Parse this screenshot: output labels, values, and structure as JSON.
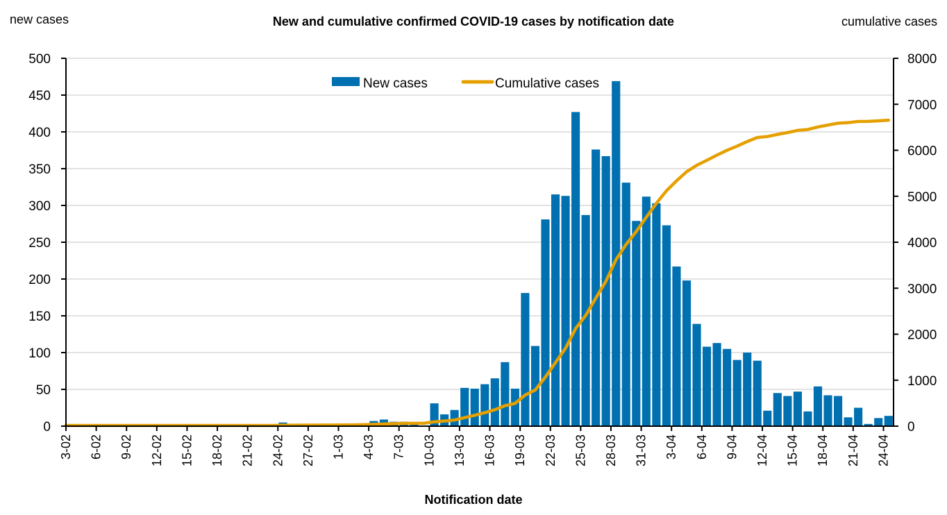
{
  "chart_data": {
    "type": "bar+line",
    "title": "New and cumulative confirmed COVID-19 cases by notification date",
    "xlabel": "Notification date",
    "ylabel_left": "new cases",
    "ylabel_right": "cumulative cases",
    "ylim_left": [
      0,
      500
    ],
    "ylim_right": [
      0,
      8000
    ],
    "yticks_left": [
      0,
      50,
      100,
      150,
      200,
      250,
      300,
      350,
      400,
      450,
      500
    ],
    "yticks_right": [
      0,
      1000,
      2000,
      3000,
      4000,
      5000,
      6000,
      7000,
      8000
    ],
    "grid": true,
    "legend": {
      "placement": "top-center",
      "entries": [
        "New cases",
        "Cumulative cases"
      ]
    },
    "colors": {
      "bars": "#0070B0",
      "line": "#E5A000",
      "grid": "#D9D9D9"
    },
    "x_tick_labels": [
      "3-02",
      "6-02",
      "9-02",
      "12-02",
      "15-02",
      "18-02",
      "21-02",
      "24-02",
      "27-02",
      "1-03",
      "4-03",
      "7-03",
      "10-03",
      "13-03",
      "16-03",
      "19-03",
      "22-03",
      "25-03",
      "28-03",
      "31-03",
      "3-04",
      "6-04",
      "9-04",
      "12-04",
      "15-04",
      "18-04",
      "21-04",
      "24-04"
    ],
    "x_tick_every_days": 3,
    "categories": [
      "3-02",
      "4-02",
      "5-02",
      "6-02",
      "7-02",
      "8-02",
      "9-02",
      "10-02",
      "11-02",
      "12-02",
      "13-02",
      "14-02",
      "15-02",
      "16-02",
      "17-02",
      "18-02",
      "19-02",
      "20-02",
      "21-02",
      "22-02",
      "23-02",
      "24-02",
      "25-02",
      "26-02",
      "27-02",
      "28-02",
      "29-02",
      "1-03",
      "2-03",
      "3-03",
      "4-03",
      "5-03",
      "6-03",
      "7-03",
      "8-03",
      "9-03",
      "10-03",
      "11-03",
      "12-03",
      "13-03",
      "14-03",
      "15-03",
      "16-03",
      "17-03",
      "18-03",
      "19-03",
      "20-03",
      "21-03",
      "22-03",
      "23-03",
      "24-03",
      "25-03",
      "26-03",
      "27-03",
      "28-03",
      "29-03",
      "30-03",
      "31-03",
      "1-04",
      "2-04",
      "3-04",
      "4-04",
      "5-04",
      "6-04",
      "7-04",
      "8-04",
      "9-04",
      "10-04",
      "11-04",
      "12-04",
      "13-04",
      "14-04",
      "15-04",
      "16-04",
      "17-04",
      "18-04",
      "19-04",
      "20-04",
      "21-04",
      "22-04",
      "23-04",
      "24-04"
    ],
    "series": [
      {
        "name": "New cases",
        "type": "bar",
        "axis": "left",
        "values": [
          0,
          0,
          0,
          0,
          0,
          0,
          0,
          0,
          0,
          0,
          0,
          0,
          0,
          0,
          0,
          0,
          0,
          0,
          0,
          0,
          0,
          5,
          1,
          1,
          1,
          1,
          1,
          1,
          3,
          3,
          7,
          9,
          6,
          6,
          3,
          1,
          31,
          16,
          22,
          52,
          51,
          57,
          65,
          87,
          51,
          181,
          109,
          281,
          315,
          313,
          427,
          287,
          376,
          367,
          469,
          331,
          279,
          312,
          303,
          273,
          217,
          198,
          139,
          108,
          113,
          105,
          90,
          100,
          89,
          21,
          45,
          41,
          47,
          20,
          54,
          42,
          41,
          12,
          25,
          3,
          11,
          14
        ]
      },
      {
        "name": "Cumulative cases",
        "type": "line",
        "axis": "right",
        "start_value": 15,
        "values": "running-sum"
      }
    ]
  }
}
